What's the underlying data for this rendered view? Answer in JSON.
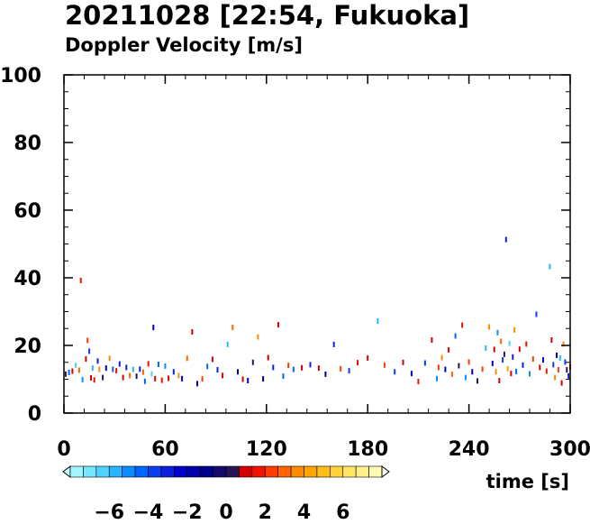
{
  "chart_data": {
    "type": "scatter",
    "title": "20211028 [22:54, Fukuoka]",
    "subtitle": "Doppler Velocity [m/s]",
    "xlabel": "time [s]",
    "ylabel": "",
    "xlim": [
      0,
      300
    ],
    "ylim": [
      0,
      100
    ],
    "x_ticks": [
      "0",
      "60",
      "120",
      "180",
      "240",
      "300"
    ],
    "y_ticks": [
      "0",
      "20",
      "40",
      "60",
      "80",
      "100"
    ],
    "grid": false,
    "colorbar": {
      "range": [
        -8,
        8
      ],
      "tick_labels": [
        "−6",
        "−4",
        "−2",
        "0",
        "2",
        "4",
        "6"
      ],
      "tick_values": [
        -6,
        -4,
        -2,
        0,
        2,
        4,
        6
      ],
      "colors": [
        "#c8ffff",
        "#a0f5ff",
        "#78e6ff",
        "#50d2ff",
        "#28b4ff",
        "#0a8cff",
        "#0064ff",
        "#0a3cf0",
        "#0a1edc",
        "#0000c8",
        "#0000aa",
        "#00008c",
        "#140a6e",
        "#281450",
        "#d20000",
        "#f01400",
        "#ff3c00",
        "#ff6400",
        "#ff8c00",
        "#ffa500",
        "#ffbe1e",
        "#ffd23c",
        "#ffe664",
        "#fff08c",
        "#fffab4",
        "#fffff0"
      ]
    },
    "points": [
      [
        1,
        11.5,
        0.5
      ],
      [
        3,
        12.0,
        -4.0
      ],
      [
        5,
        12.4,
        1.2
      ],
      [
        7,
        14.1,
        -6.0
      ],
      [
        9,
        12.7,
        2.5
      ],
      [
        10,
        39.2,
        1.4
      ],
      [
        11,
        9.9,
        -4.5
      ],
      [
        13,
        16.0,
        0.9
      ],
      [
        14,
        21.5,
        2.2
      ],
      [
        15,
        18.3,
        -3.6
      ],
      [
        16,
        10.4,
        0.9
      ],
      [
        17,
        13.3,
        -5.2
      ],
      [
        18,
        9.8,
        1.6
      ],
      [
        20,
        15.4,
        -2.9
      ],
      [
        21,
        12.9,
        3.1
      ],
      [
        23,
        10.5,
        0.3
      ],
      [
        25,
        13.3,
        -1.6
      ],
      [
        27,
        16.2,
        3.2
      ],
      [
        29,
        12.9,
        -4.0
      ],
      [
        31,
        12.5,
        1.7
      ],
      [
        33,
        14.5,
        -3.0
      ],
      [
        35,
        10.5,
        1.1
      ],
      [
        37,
        13.5,
        -2.8
      ],
      [
        39,
        11.1,
        2.5
      ],
      [
        41,
        12.9,
        -5.5
      ],
      [
        43,
        10.9,
        0.6
      ],
      [
        45,
        13.0,
        -2.9
      ],
      [
        47,
        12.1,
        3.0
      ],
      [
        48,
        9.4,
        -4.2
      ],
      [
        50,
        14.6,
        1.8
      ],
      [
        52,
        11.6,
        -5.7
      ],
      [
        53,
        25.3,
        -2.0
      ],
      [
        54,
        10.2,
        0.7
      ],
      [
        56,
        14.4,
        -3.8
      ],
      [
        58,
        9.7,
        1.8
      ],
      [
        60,
        13.9,
        -4.9
      ],
      [
        62,
        10.3,
        1.0
      ],
      [
        65,
        12.2,
        -2.5
      ],
      [
        68,
        11.1,
        3.5
      ],
      [
        70,
        10.2,
        -1.4
      ],
      [
        73,
        16.2,
        2.7
      ],
      [
        76,
        24.0,
        0.7
      ],
      [
        79,
        8.7,
        -1.2
      ],
      [
        82,
        10.1,
        2.3
      ],
      [
        85,
        13.8,
        -4.0
      ],
      [
        88,
        15.9,
        0.9
      ],
      [
        91,
        12.8,
        -3.0
      ],
      [
        94,
        11.1,
        1.1
      ],
      [
        97,
        20.3,
        -5.3
      ],
      [
        100,
        25.3,
        3.0
      ],
      [
        103,
        12.2,
        -0.9
      ],
      [
        106,
        10.0,
        1.1
      ],
      [
        109,
        9.6,
        -2.2
      ],
      [
        112,
        15.0,
        0.3
      ],
      [
        115,
        22.5,
        3.6
      ],
      [
        118,
        10.1,
        -1.2
      ],
      [
        121,
        16.4,
        1.1
      ],
      [
        124,
        13.5,
        -3.0
      ],
      [
        127,
        26.1,
        0.9
      ],
      [
        130,
        10.9,
        -3.8
      ],
      [
        133,
        14.1,
        2.2
      ],
      [
        136,
        12.9,
        -4.0
      ],
      [
        141,
        13.4,
        0.9
      ],
      [
        146,
        14.3,
        -2.5
      ],
      [
        151,
        13.3,
        1.0
      ],
      [
        155,
        11.5,
        -1.2
      ],
      [
        160,
        20.3,
        -2.5
      ],
      [
        164,
        13.1,
        2.1
      ],
      [
        169,
        12.5,
        -3.1
      ],
      [
        174,
        14.9,
        1.4
      ],
      [
        180,
        16.3,
        0.9
      ],
      [
        186,
        27.2,
        -5.4
      ],
      [
        190,
        14.2,
        2.0
      ],
      [
        196,
        12.2,
        -3.5
      ],
      [
        201,
        15.0,
        0.8
      ],
      [
        206,
        11.7,
        -2.3
      ],
      [
        210,
        9.3,
        1.6
      ],
      [
        214,
        14.8,
        -3.3
      ],
      [
        218,
        21.6,
        0.9
      ],
      [
        221,
        10.2,
        -4.9
      ],
      [
        222,
        13.5,
        2.2
      ],
      [
        224,
        16.4,
        3.1
      ],
      [
        226,
        12.9,
        -1.8
      ],
      [
        228,
        18.7,
        1.0
      ],
      [
        230,
        11.5,
        2.9
      ],
      [
        232,
        22.8,
        -3.8
      ],
      [
        234,
        14.0,
        0.4
      ],
      [
        236,
        26.0,
        1.6
      ],
      [
        238,
        10.5,
        -4.4
      ],
      [
        240,
        15.1,
        2.2
      ],
      [
        242,
        12.2,
        -1.5
      ],
      [
        245,
        9.5,
        0.5
      ],
      [
        248,
        13.0,
        2.0
      ],
      [
        250,
        19.2,
        -5.5
      ],
      [
        252,
        25.5,
        3.1
      ],
      [
        254,
        14.7,
        -1.8
      ],
      [
        255,
        18.8,
        0.9
      ],
      [
        256,
        12.2,
        3.5
      ],
      [
        257,
        23.8,
        -4.4
      ],
      [
        258,
        9.6,
        1.0
      ],
      [
        259,
        21.2,
        2.8
      ],
      [
        260,
        15.7,
        -3.3
      ],
      [
        261,
        17.4,
        0.5
      ],
      [
        262,
        51.3,
        -2.5
      ],
      [
        263,
        13.1,
        4.3
      ],
      [
        264,
        20.6,
        -6.0
      ],
      [
        265,
        11.7,
        1.0
      ],
      [
        266,
        16.6,
        -2.5
      ],
      [
        267,
        24.6,
        3.1
      ],
      [
        268,
        12.3,
        -4.3
      ],
      [
        270,
        18.9,
        0.9
      ],
      [
        272,
        14.2,
        -3.0
      ],
      [
        274,
        20.4,
        1.6
      ],
      [
        276,
        11.6,
        -4.4
      ],
      [
        278,
        16.0,
        2.4
      ],
      [
        280,
        29.2,
        -3.4
      ],
      [
        282,
        13.5,
        0.7
      ],
      [
        284,
        15.7,
        -2.0
      ],
      [
        286,
        12.4,
        1.8
      ],
      [
        288,
        43.3,
        -5.1
      ],
      [
        289,
        21.6,
        0.9
      ],
      [
        290,
        14.3,
        -3.6
      ],
      [
        291,
        10.5,
        3.1
      ],
      [
        292,
        17.1,
        -1.5
      ],
      [
        293,
        12.8,
        2.4
      ],
      [
        294,
        16.3,
        -5.0
      ],
      [
        295,
        8.9,
        1.2
      ],
      [
        296,
        20.4,
        3.6
      ],
      [
        297,
        15.1,
        -3.1
      ],
      [
        298,
        12.8,
        0.6
      ],
      [
        299,
        11.0,
        -2.6
      ],
      [
        300,
        13.6,
        1.4
      ]
    ]
  }
}
